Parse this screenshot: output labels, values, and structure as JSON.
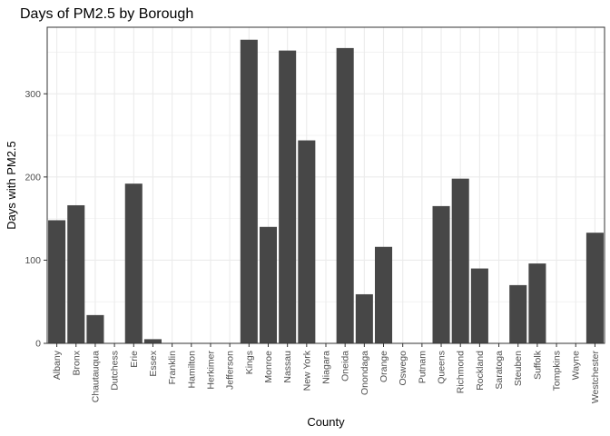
{
  "chart_data": {
    "type": "bar",
    "title": "Days of PM2.5 by Borough",
    "xlabel": "County",
    "ylabel": "Days with PM2.5",
    "ylim": [
      0,
      380
    ],
    "yticks": [
      0,
      100,
      200,
      300
    ],
    "grid": true,
    "bar_color": "#474747",
    "categories": [
      "Albany",
      "Bronx",
      "Chautauqua",
      "Dutchess",
      "Erie",
      "Essex",
      "Franklin",
      "Hamilton",
      "Herkimer",
      "Jefferson",
      "Kings",
      "Monroe",
      "Nassau",
      "New York",
      "Niagara",
      "Oneida",
      "Onondaga",
      "Orange",
      "Oswego",
      "Putnam",
      "Queens",
      "Richmond",
      "Rockland",
      "Saratoga",
      "Steuben",
      "Suffolk",
      "Tompkins",
      "Wayne",
      "Westchester"
    ],
    "values": [
      148,
      166,
      34,
      0,
      192,
      5,
      0,
      0,
      0,
      0,
      365,
      140,
      352,
      244,
      0,
      355,
      59,
      116,
      0,
      0,
      165,
      198,
      90,
      0,
      70,
      96,
      0,
      0,
      133
    ]
  }
}
